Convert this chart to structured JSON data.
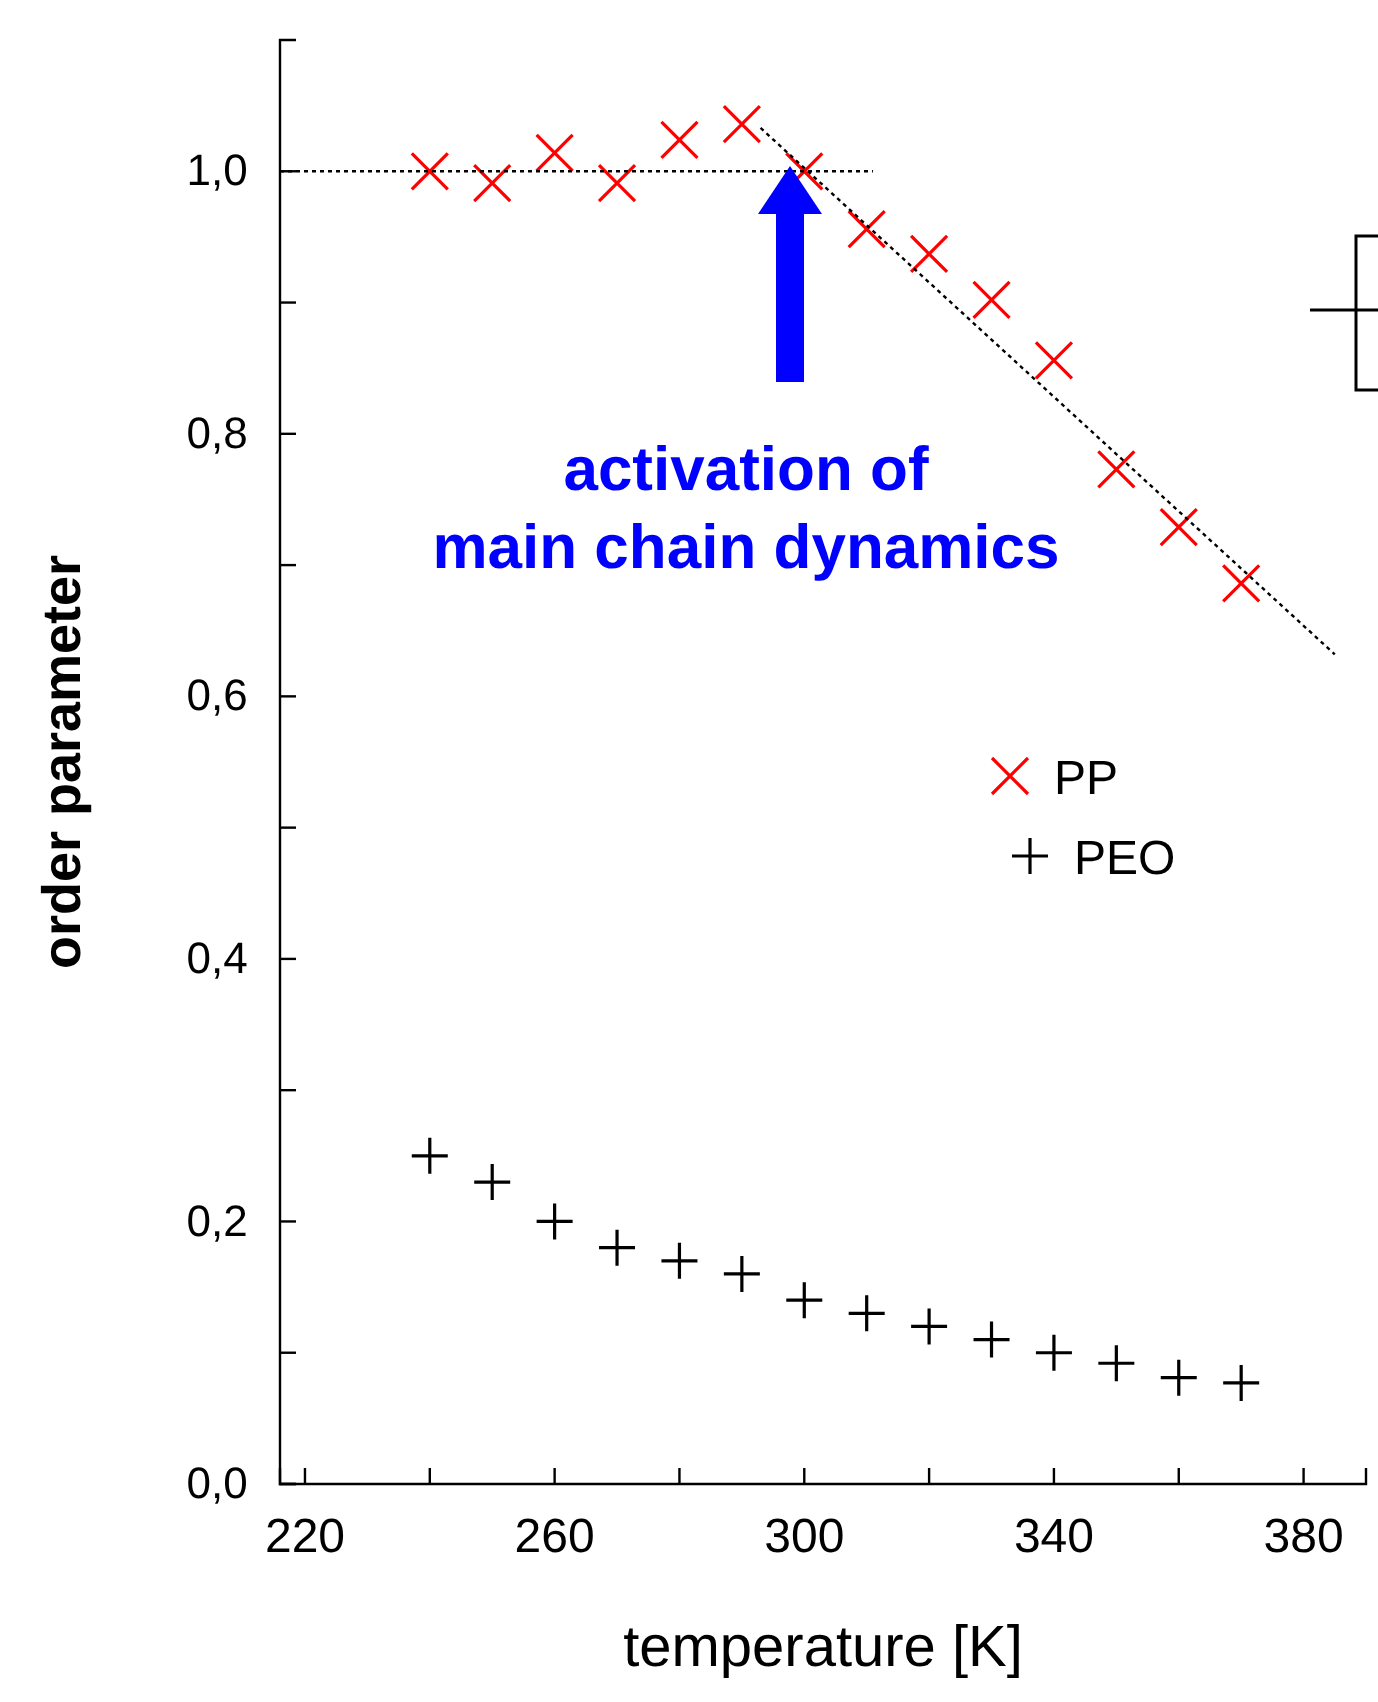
{
  "chart_data": {
    "type": "scatter",
    "xlabel": "temperature [K]",
    "ylabel": "order parameter",
    "xlim": [
      216,
      390
    ],
    "ylim": [
      0,
      1.1
    ],
    "xticks": [
      220,
      {
        "value": 240,
        "label": null
      },
      260,
      {
        "value": 280,
        "label": null
      },
      300,
      {
        "value": 320,
        "label": null
      },
      340,
      {
        "value": 360,
        "label": null
      },
      380
    ],
    "yticks": [
      {
        "value": 0,
        "label": "0,0"
      },
      {
        "value": 0.1,
        "label": null
      },
      {
        "value": 0.2,
        "label": "0,2"
      },
      {
        "value": 0.3,
        "label": null
      },
      {
        "value": 0.4,
        "label": "0,4"
      },
      {
        "value": 0.5,
        "label": null
      },
      {
        "value": 0.6,
        "label": "0,6"
      },
      {
        "value": 0.7,
        "label": null
      },
      {
        "value": 0.8,
        "label": "0,8"
      },
      {
        "value": 0.9,
        "label": null
      },
      {
        "value": 1.0,
        "label": "1,0"
      }
    ],
    "grid": false,
    "legend": "right",
    "series": [
      {
        "name": "PP",
        "color": "#ff0000",
        "marker": "x",
        "x": [
          240,
          250,
          260,
          270,
          280,
          290,
          300,
          310,
          320,
          330,
          340,
          350,
          360,
          370
        ],
        "values": [
          1.0,
          0.991,
          1.014,
          0.991,
          1.024,
          1.036,
          1.0,
          0.956,
          0.937,
          0.902,
          0.856,
          0.773,
          0.729,
          0.686
        ]
      },
      {
        "name": "PEO",
        "color": "#000000",
        "marker": "cross",
        "x": [
          240,
          250,
          260,
          270,
          280,
          290,
          300,
          310,
          320,
          330,
          340,
          350,
          360,
          370
        ],
        "values": [
          0.25,
          0.23,
          0.2,
          0.18,
          0.17,
          0.16,
          0.14,
          0.13,
          0.12,
          0.11,
          0.1,
          0.092,
          0.081,
          0.077
        ]
      },
      {
        "type": "line",
        "color": "#000000",
        "line_style": "dotted",
        "x": [
          216,
          311
        ],
        "values": [
          1.0,
          1.0
        ]
      },
      {
        "type": "line",
        "color": "#000000",
        "line_style": "dotted",
        "x": [
          293,
          385
        ],
        "values": [
          1.033,
          0.632
        ]
      }
    ],
    "annotations": [
      "activation of main chain dynamics"
    ]
  }
}
